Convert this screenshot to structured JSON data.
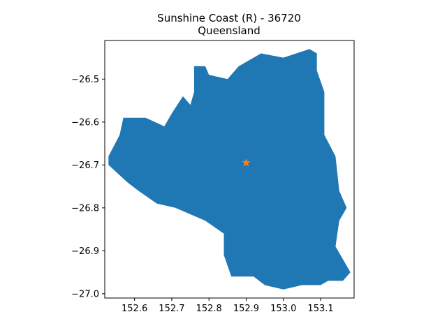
{
  "figure": {
    "title_line1": "Sunshine Coast (R) - 36720",
    "title_line2": "Queensland"
  },
  "colors": {
    "region_fill": "#1f77b4",
    "marker": "#ff7f0e",
    "axis": "#000000",
    "background": "#ffffff"
  },
  "chart_data": {
    "type": "map",
    "xlim": [
      152.52,
      153.19
    ],
    "ylim": [
      -27.01,
      -26.41
    ],
    "xticks": [
      152.6,
      152.7,
      152.8,
      152.9,
      153.0,
      153.1
    ],
    "yticks": [
      -26.5,
      -26.6,
      -26.7,
      -26.8,
      -26.9,
      -27.0
    ],
    "xtick_labels": [
      "152.6",
      "152.7",
      "152.8",
      "152.9",
      "153.0",
      "153.1"
    ],
    "ytick_labels": [
      "−26.5",
      "−26.6",
      "−26.7",
      "−26.8",
      "−26.9",
      "−27.0"
    ],
    "marker": {
      "symbol": "star",
      "lon": 152.9,
      "lat": -26.695
    },
    "region_outline": [
      [
        152.53,
        -26.68
      ],
      [
        152.56,
        -26.63
      ],
      [
        152.57,
        -26.59
      ],
      [
        152.63,
        -26.59
      ],
      [
        152.68,
        -26.61
      ],
      [
        152.7,
        -26.58
      ],
      [
        152.73,
        -26.54
      ],
      [
        152.75,
        -26.56
      ],
      [
        152.76,
        -26.53
      ],
      [
        152.76,
        -26.47
      ],
      [
        152.79,
        -26.47
      ],
      [
        152.8,
        -26.49
      ],
      [
        152.85,
        -26.5
      ],
      [
        152.88,
        -26.47
      ],
      [
        152.94,
        -26.44
      ],
      [
        153.0,
        -26.45
      ],
      [
        153.07,
        -26.43
      ],
      [
        153.09,
        -26.44
      ],
      [
        153.09,
        -26.48
      ],
      [
        153.11,
        -26.53
      ],
      [
        153.11,
        -26.63
      ],
      [
        153.14,
        -26.68
      ],
      [
        153.15,
        -26.76
      ],
      [
        153.17,
        -26.8
      ],
      [
        153.15,
        -26.83
      ],
      [
        153.14,
        -26.89
      ],
      [
        153.18,
        -26.95
      ],
      [
        153.16,
        -26.97
      ],
      [
        153.12,
        -26.97
      ],
      [
        153.1,
        -26.98
      ],
      [
        153.05,
        -26.98
      ],
      [
        153.0,
        -26.99
      ],
      [
        152.95,
        -26.98
      ],
      [
        152.92,
        -26.96
      ],
      [
        152.86,
        -26.96
      ],
      [
        152.84,
        -26.91
      ],
      [
        152.84,
        -26.86
      ],
      [
        152.79,
        -26.83
      ],
      [
        152.71,
        -26.8
      ],
      [
        152.66,
        -26.79
      ],
      [
        152.61,
        -26.76
      ],
      [
        152.58,
        -26.74
      ],
      [
        152.53,
        -26.7
      ]
    ]
  }
}
